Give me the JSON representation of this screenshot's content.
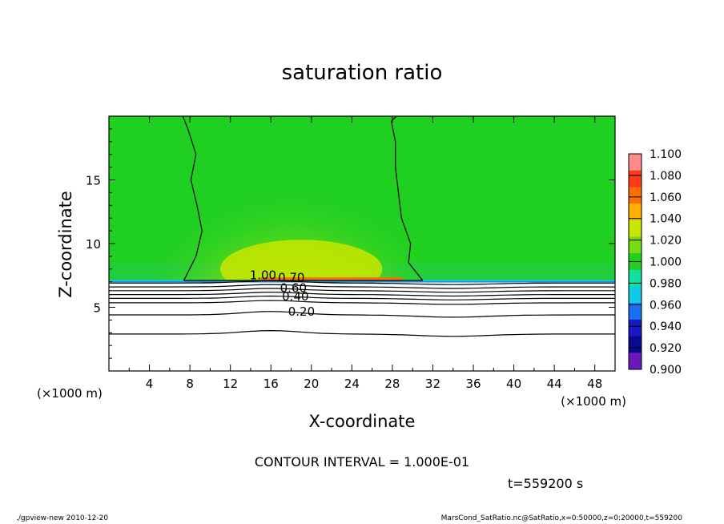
{
  "title": "saturation ratio",
  "chart_data": {
    "type": "heatmap",
    "title": "saturation ratio",
    "xlabel": "X-coordinate",
    "ylabel": "Z-coordinate",
    "x_unit": "(×1000 m)",
    "y_unit": "(×1000 m)",
    "xlim": [
      0,
      50
    ],
    "ylim": [
      0,
      20
    ],
    "x_ticks": [
      4,
      8,
      12,
      16,
      20,
      24,
      28,
      32,
      36,
      40,
      44,
      48
    ],
    "y_ticks": [
      5,
      10,
      15
    ],
    "colorbar": {
      "levels": [
        "1.100",
        "1.080",
        "1.060",
        "1.040",
        "1.020",
        "1.000",
        "0.980",
        "0.960",
        "0.940",
        "0.920",
        "0.900"
      ],
      "colors": [
        "#ff8c8c",
        "#ff3a1a",
        "#ff6e00",
        "#ffb000",
        "#c8e600",
        "#74dc10",
        "#20d020",
        "#10e0a0",
        "#10c8e8",
        "#1870f0",
        "#1818c0",
        "#0a0a90",
        "#6a18b8"
      ]
    },
    "contour_labels": [
      "1.00",
      "0.70",
      "0.60",
      "0.40",
      "0.20"
    ],
    "contour_interval": "CONTOUR INTERVAL = 1.000E-01",
    "time": "t=559200 s"
  },
  "footer": {
    "left": "./gpview-new   2010-12-20",
    "right": "MarsCond_SatRatio.nc@SatRatio,x=0:50000,z=0:20000,t=559200"
  }
}
